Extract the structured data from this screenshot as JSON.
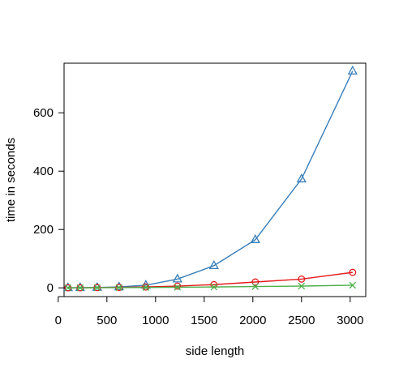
{
  "chart_data": {
    "type": "line",
    "title": "",
    "xlabel": "side length",
    "ylabel": "time in seconds",
    "xlim": [
      60,
      3160
    ],
    "ylim": [
      -30,
      770
    ],
    "xticks": [
      0,
      500,
      1000,
      1500,
      2000,
      2500,
      3000
    ],
    "xtick_labels": [
      "0",
      "500",
      "1000",
      "1500",
      "2000",
      "2500",
      "3000"
    ],
    "yticks": [
      0,
      200,
      400,
      600
    ],
    "ytick_labels": [
      "0",
      "200",
      "400",
      "600"
    ],
    "grid": false,
    "legend": "none",
    "series": [
      {
        "color": "#377EB8",
        "marker": "triangle",
        "x": [
          100,
          225,
          400,
          625,
          900,
          1225,
          1600,
          2025,
          2500,
          3025
        ],
        "values": [
          0.3,
          0.6,
          1.2,
          3,
          9,
          30,
          76,
          165,
          373,
          743
        ]
      },
      {
        "color": "#E41A1C",
        "marker": "circle",
        "x": [
          100,
          225,
          400,
          625,
          900,
          1225,
          1600,
          2025,
          2500,
          3025
        ],
        "values": [
          0.1,
          0.3,
          0.8,
          1.5,
          3,
          6,
          11,
          20,
          30,
          53
        ]
      },
      {
        "color": "#4DAF4A",
        "marker": "x",
        "x": [
          100,
          225,
          400,
          625,
          900,
          1225,
          1600,
          2025,
          2500,
          3025
        ],
        "values": [
          0.1,
          0.2,
          0.5,
          0.8,
          1.2,
          2,
          3,
          4.5,
          6,
          9
        ]
      }
    ]
  }
}
